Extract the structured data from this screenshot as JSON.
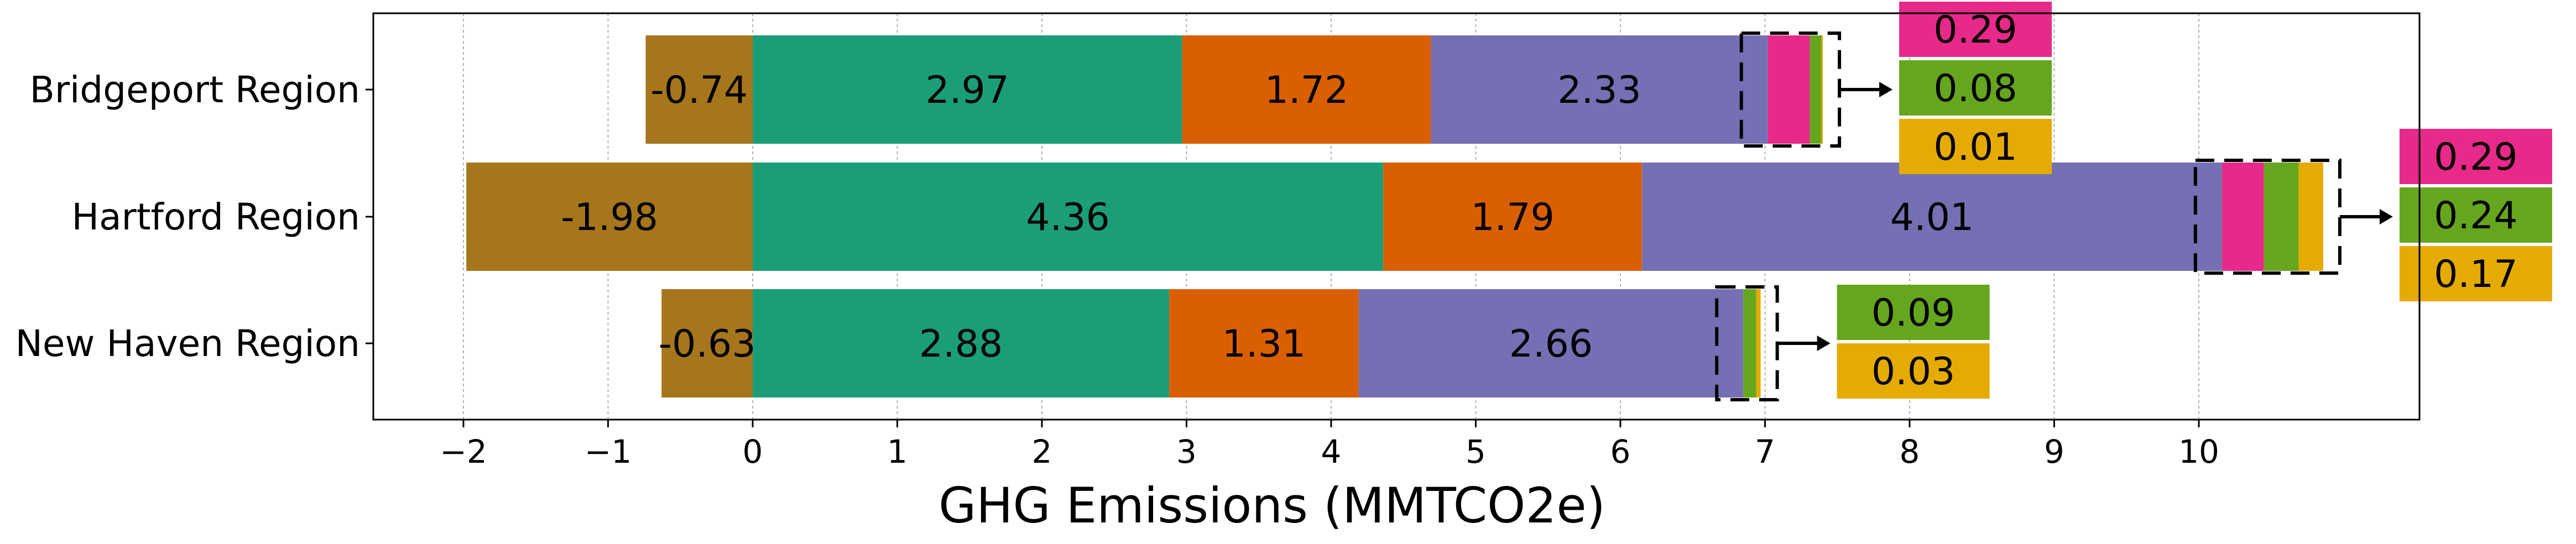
{
  "chart_data": {
    "type": "bar",
    "orientation": "horizontal",
    "stacked": true,
    "xlabel": "GHG Emissions (MMTCO2e)",
    "ylabel": "",
    "xlim": [
      -2.6,
      11.5
    ],
    "xticks": [
      -2,
      -1,
      0,
      1,
      2,
      3,
      4,
      5,
      6,
      7,
      8,
      9,
      10
    ],
    "grid": "vertical dotted",
    "categories": [
      "Bridgeport Region",
      "Hartford Region",
      "New Haven Region"
    ],
    "series": [
      {
        "color": "#A6761D",
        "values": [
          -0.74,
          -1.98,
          -0.63
        ]
      },
      {
        "color": "#1B9E77",
        "values": [
          2.97,
          4.36,
          2.88
        ]
      },
      {
        "color": "#D95F02",
        "values": [
          1.72,
          1.79,
          1.31
        ]
      },
      {
        "color": "#7570B3",
        "values": [
          2.33,
          4.01,
          2.66
        ]
      },
      {
        "color": "#E7298A",
        "values": [
          0.29,
          0.29,
          0
        ]
      },
      {
        "color": "#66A61E",
        "values": [
          0.08,
          0.24,
          0.09
        ]
      },
      {
        "color": "#E6AB02",
        "values": [
          0.01,
          0.17,
          0.03
        ]
      }
    ],
    "labels": [
      [
        "-0.74",
        "2.97",
        "1.72",
        "2.33"
      ],
      [
        "-1.98",
        "4.36",
        "1.79",
        "4.01"
      ],
      [
        "-0.63",
        "2.88",
        "1.31",
        "2.66"
      ]
    ],
    "callouts": [
      {
        "labels": [
          "0.29",
          "0.08",
          "0.01"
        ]
      },
      {
        "labels": [
          "0.29",
          "0.24",
          "0.17"
        ]
      },
      {
        "labels": [
          "0.09",
          "0.03"
        ]
      }
    ]
  }
}
